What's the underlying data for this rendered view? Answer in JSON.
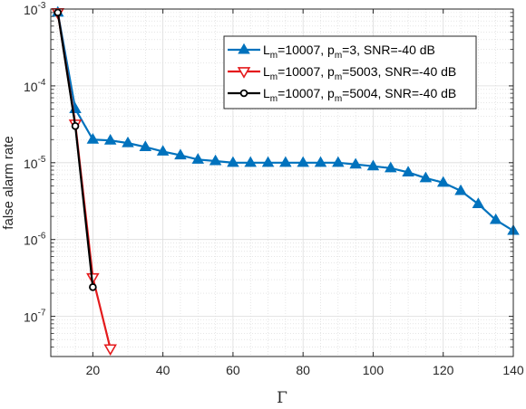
{
  "chart_data": {
    "type": "line",
    "xlabel": "Γ",
    "ylabel": "false alarm rate",
    "xlim": [
      8,
      140
    ],
    "ylim": [
      3e-08,
      0.001
    ],
    "yscale": "log",
    "grid": true,
    "minor_grid": true,
    "legend_position": "top-right",
    "x_ticks": [
      "20",
      "40",
      "60",
      "80",
      "100",
      "120",
      "140"
    ],
    "x_tick_values": [
      20,
      40,
      60,
      80,
      100,
      120,
      140
    ],
    "y_ticks": [
      {
        "base": "10",
        "exp": "-7",
        "value": 1e-07
      },
      {
        "base": "10",
        "exp": "-6",
        "value": 1e-06
      },
      {
        "base": "10",
        "exp": "-5",
        "value": 1e-05
      },
      {
        "base": "10",
        "exp": "-4",
        "value": 0.0001
      },
      {
        "base": "10",
        "exp": "-3",
        "value": 0.001
      }
    ],
    "series": [
      {
        "legend_parts": [
          "L",
          "m",
          "=10007, p",
          "m",
          "=3, SNR=-40 dB"
        ],
        "color": "#0072BD",
        "marker": "triangle-up",
        "x": [
          10,
          15,
          20,
          25,
          30,
          35,
          40,
          45,
          50,
          55,
          60,
          65,
          70,
          75,
          80,
          85,
          90,
          95,
          100,
          105,
          110,
          115,
          120,
          125,
          130,
          135,
          140
        ],
        "y": [
          0.0009,
          5e-05,
          2e-05,
          1.95e-05,
          1.8e-05,
          1.6e-05,
          1.4e-05,
          1.25e-05,
          1.1e-05,
          1.05e-05,
          1e-05,
          1e-05,
          1e-05,
          1e-05,
          1e-05,
          1e-05,
          1e-05,
          9.5e-06,
          9e-06,
          8.5e-06,
          7.5e-06,
          6.3e-06,
          5.5e-06,
          4.3e-06,
          2.9e-06,
          1.8e-06,
          1.3e-06
        ]
      },
      {
        "legend_parts": [
          "L",
          "m",
          "=10007, p",
          "m",
          "=5003, SNR=-40 dB"
        ],
        "color": "#E41A1C",
        "marker": "triangle-down",
        "x": [
          10,
          15,
          20,
          25
        ],
        "y": [
          0.0009,
          3.2e-05,
          3.2e-07,
          3.8e-08
        ]
      },
      {
        "legend_parts": [
          "L",
          "m",
          "=10007, p",
          "m",
          "=5004, SNR=-40 dB"
        ],
        "color": "#000000",
        "marker": "circle",
        "x": [
          10,
          15,
          20
        ],
        "y": [
          0.0009,
          3e-05,
          2.4e-07
        ]
      }
    ]
  }
}
